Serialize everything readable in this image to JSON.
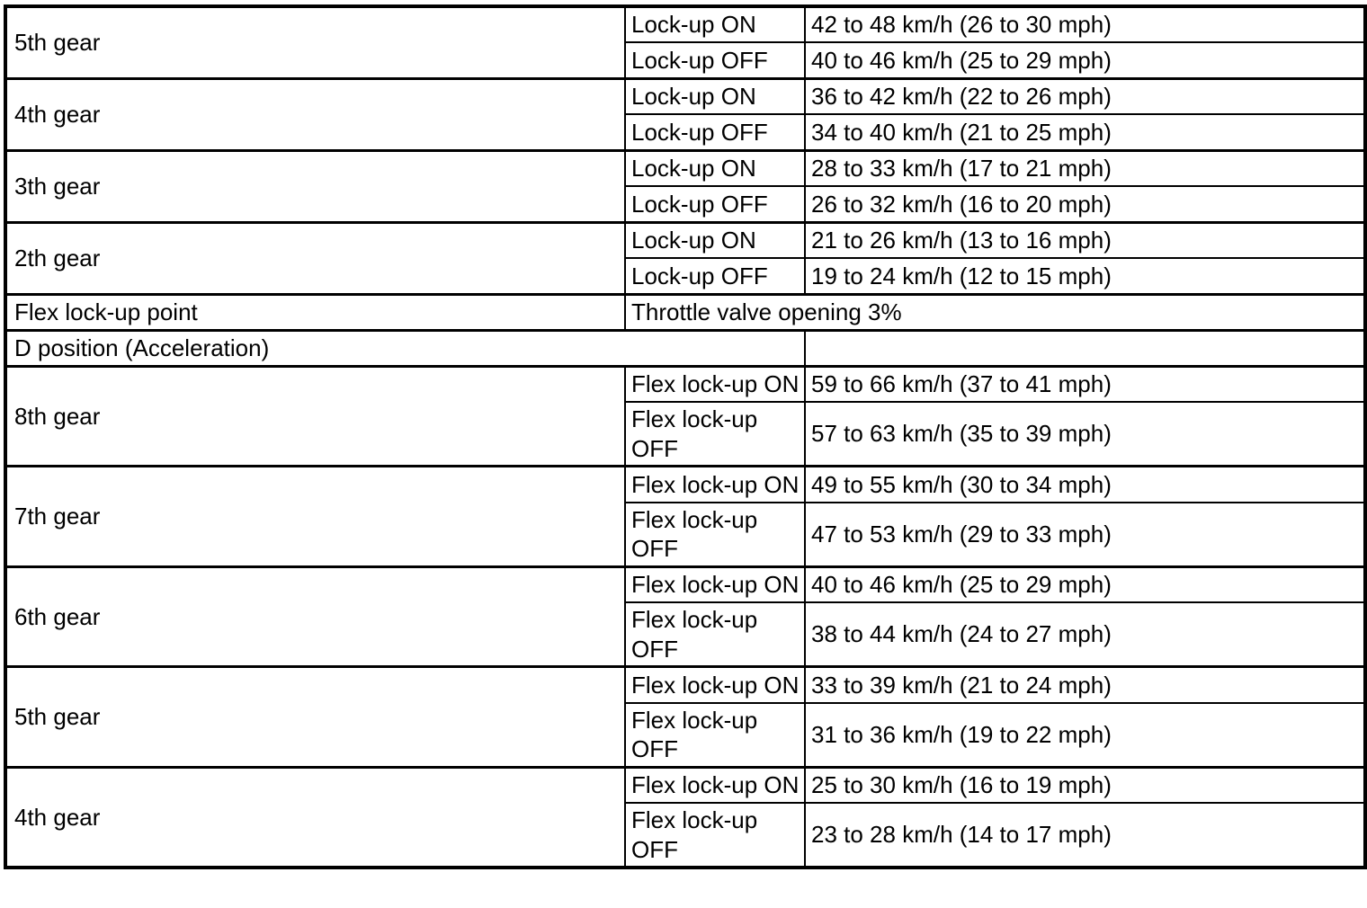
{
  "colors": {
    "border": "#000000",
    "background": "#ffffff",
    "text": "#000000"
  },
  "upper_groups": [
    {
      "gear": "5th gear",
      "on": {
        "label": "Lock-up ON",
        "value": "42 to 48 km/h (26 to 30 mph)"
      },
      "off": {
        "label": "Lock-up OFF",
        "value": "40 to 46 km/h (25 to 29 mph)"
      }
    },
    {
      "gear": "4th gear",
      "on": {
        "label": "Lock-up ON",
        "value": "36 to 42 km/h (22 to 26 mph)"
      },
      "off": {
        "label": "Lock-up OFF",
        "value": "34 to 40 km/h (21 to 25 mph)"
      }
    },
    {
      "gear": "3th gear",
      "on": {
        "label": "Lock-up ON",
        "value": "28 to 33 km/h (17 to 21 mph)"
      },
      "off": {
        "label": "Lock-up OFF",
        "value": "26 to 32 km/h (16 to 20 mph)"
      }
    },
    {
      "gear": "2th gear",
      "on": {
        "label": "Lock-up ON",
        "value": "21 to 26 km/h (13 to 16 mph)"
      },
      "off": {
        "label": "Lock-up OFF",
        "value": "19 to 24 km/h (12 to 15 mph)"
      }
    }
  ],
  "flex_lockup_point": {
    "label": "Flex lock-up point",
    "value": "Throttle valve opening 3%"
  },
  "section_header": {
    "label": "D position (Acceleration)"
  },
  "lower_groups": [
    {
      "gear": "8th gear",
      "on": {
        "label": "Flex lock-up ON",
        "value": "59 to 66 km/h (37 to 41 mph)"
      },
      "off": {
        "label": "Flex lock-up OFF",
        "value": "57 to 63 km/h (35 to 39 mph)"
      }
    },
    {
      "gear": "7th gear",
      "on": {
        "label": "Flex lock-up ON",
        "value": "49 to 55 km/h (30 to 34 mph)"
      },
      "off": {
        "label": "Flex lock-up OFF",
        "value": "47 to 53 km/h (29 to 33 mph)"
      }
    },
    {
      "gear": "6th gear",
      "on": {
        "label": "Flex lock-up ON",
        "value": "40 to 46 km/h (25 to 29 mph)"
      },
      "off": {
        "label": "Flex lock-up OFF",
        "value": "38 to 44 km/h (24 to 27 mph)"
      }
    },
    {
      "gear": "5th gear",
      "on": {
        "label": "Flex lock-up ON",
        "value": "33 to 39 km/h (21 to 24 mph)"
      },
      "off": {
        "label": "Flex lock-up OFF",
        "value": "31 to 36 km/h (19 to 22 mph)"
      }
    },
    {
      "gear": "4th gear",
      "on": {
        "label": "Flex lock-up ON",
        "value": "25 to 30 km/h (16 to 19 mph)"
      },
      "off": {
        "label": "Flex lock-up OFF",
        "value": "23 to 28 km/h (14 to 17 mph)"
      }
    }
  ]
}
